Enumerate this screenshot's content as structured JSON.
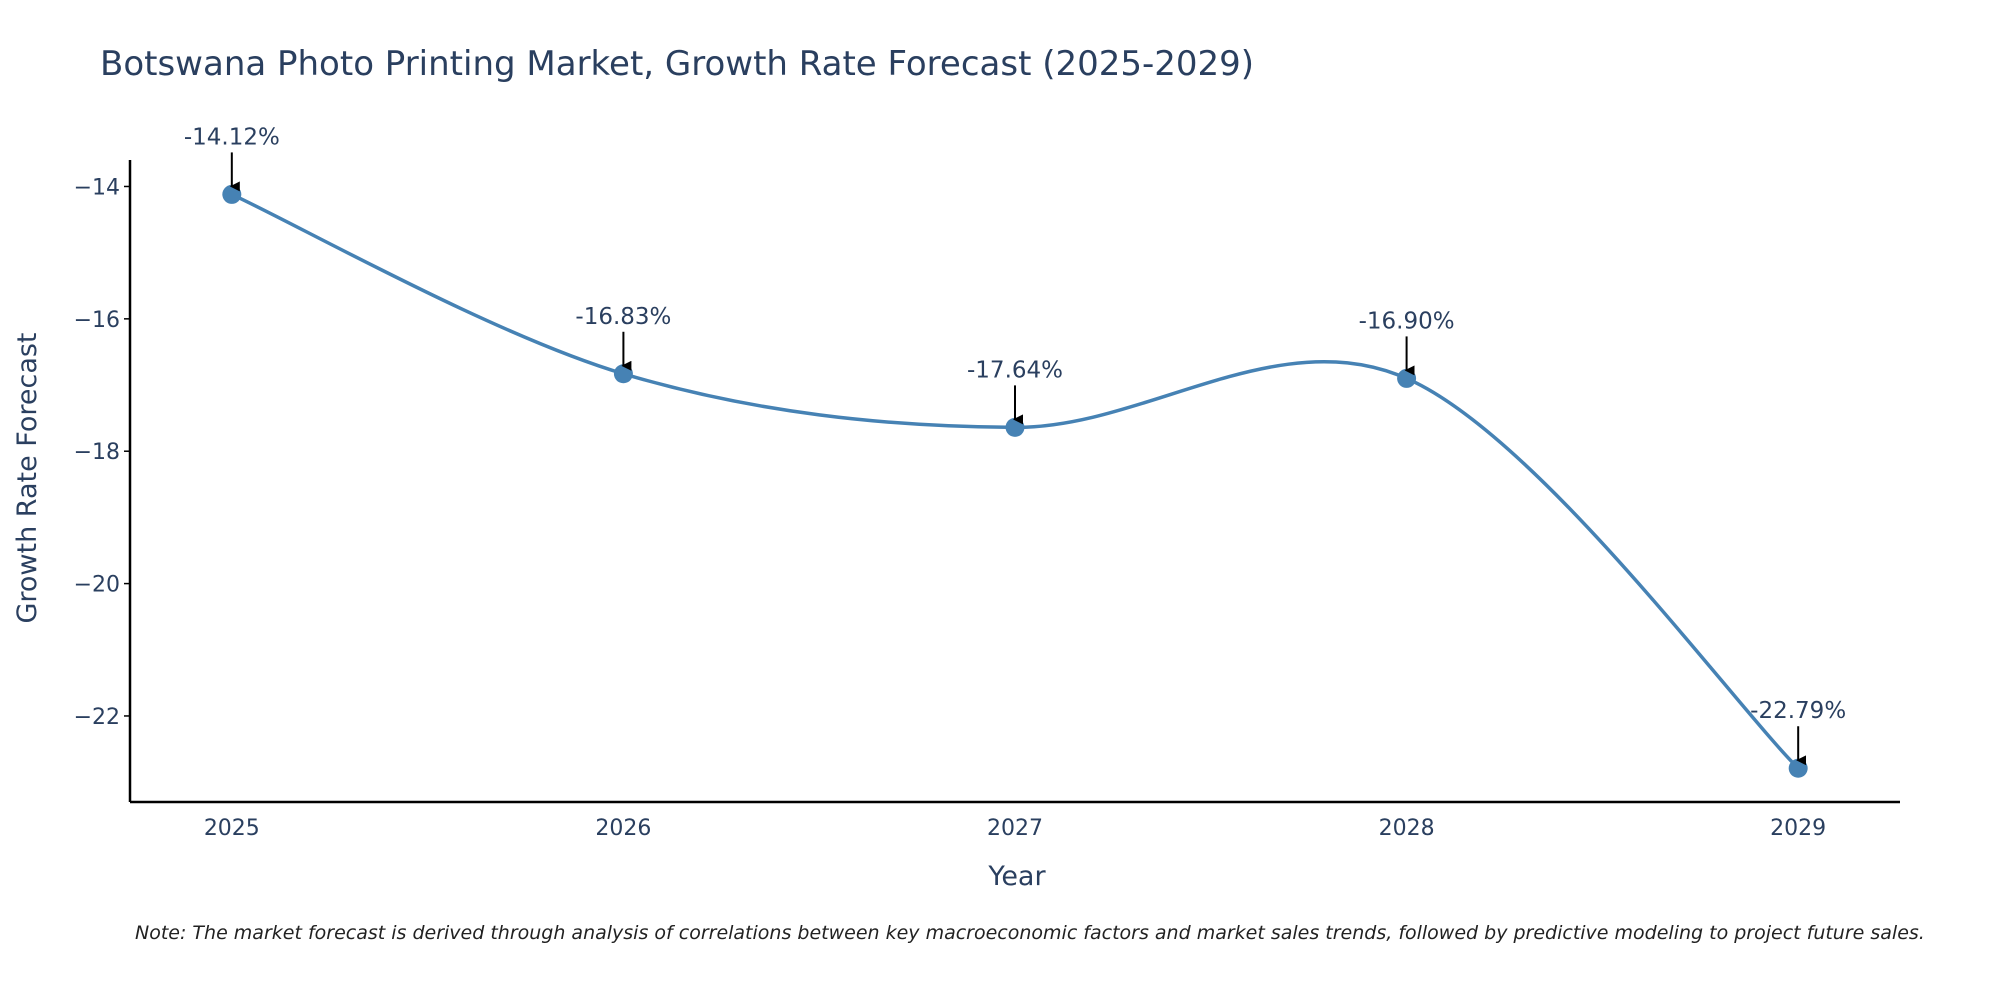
{
  "chart_data": {
    "type": "line",
    "title": "Botswana Photo Printing Market, Growth Rate Forecast (2025-2029)",
    "xlabel": "Year",
    "ylabel": "Growth Rate Forecast",
    "x": [
      "2025",
      "2026",
      "2027",
      "2028",
      "2029"
    ],
    "series": [
      {
        "name": "Growth Rate Forecast",
        "values": [
          -14.12,
          -16.83,
          -17.64,
          -16.9,
          -22.79
        ],
        "color": "#4682b4"
      }
    ],
    "annotations": [
      "-14.12%",
      "-16.83%",
      "-17.64%",
      "-16.90%",
      "-22.79%"
    ],
    "y_ticks": [
      -14,
      -16,
      -18,
      -20,
      -22
    ],
    "y_tick_labels": [
      "−14",
      "−16",
      "−18",
      "−20",
      "−22"
    ],
    "ylim": [
      -23.3,
      -13.6
    ],
    "xlim": [
      2024.74,
      2029.26
    ],
    "grid": false,
    "line_shape": "spline"
  },
  "note": "Note: The market forecast is derived through analysis of correlations between key macroeconomic factors and market sales trends, followed by predictive modeling to project future sales."
}
